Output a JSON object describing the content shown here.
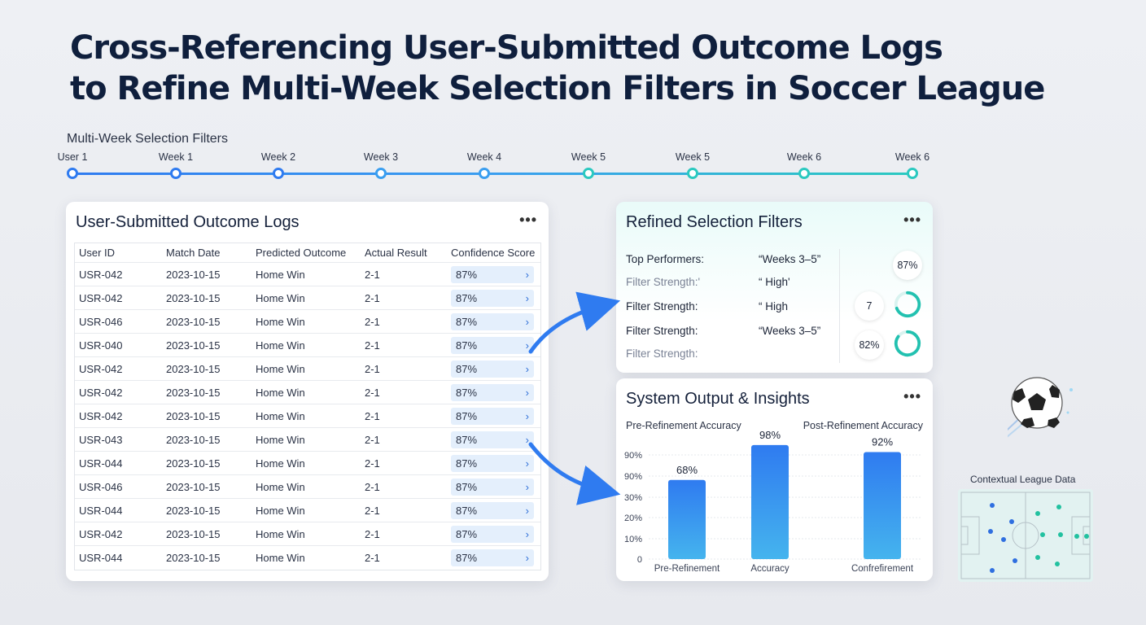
{
  "title": {
    "line1": "Cross-Referencing User-Submitted Outcome Logs",
    "line2": "to Refine Multi-Week Selection Filters in Soccer League"
  },
  "timeline": {
    "label": "Multi-Week Selection Filters",
    "nodes": [
      "User 1",
      "Week 1",
      "Week 2",
      "Week 3",
      "Week 4",
      "Week 5",
      "Week 5",
      "Week 6",
      "Week 6"
    ]
  },
  "logs": {
    "title": "User-Submitted Outcome Logs",
    "more": "•••",
    "columns": [
      "User ID",
      "Match Date",
      "Predicted Outcome",
      "Actual Result",
      "Confidence Score"
    ],
    "rows": [
      [
        "USR-042",
        "2023-10-15",
        "Home Win",
        "2-1",
        "87%"
      ],
      [
        "USR-042",
        "2023-10-15",
        "Home Win",
        "2-1",
        "87%"
      ],
      [
        "USR-046",
        "2023-10-15",
        "Home Win",
        "2-1",
        "87%"
      ],
      [
        "USR-040",
        "2023-10-15",
        "Home Win",
        "2-1",
        "87%"
      ],
      [
        "USR-042",
        "2023-10-15",
        "Home Win",
        "2-1",
        "87%"
      ],
      [
        "USR-042",
        "2023-10-15",
        "Home Win",
        "2-1",
        "87%"
      ],
      [
        "USR-042",
        "2023-10-15",
        "Home Win",
        "2-1",
        "87%"
      ],
      [
        "USR-043",
        "2023-10-15",
        "Home Win",
        "2-1",
        "87%"
      ],
      [
        "USR-044",
        "2023-10-15",
        "Home Win",
        "2-1",
        "87%"
      ],
      [
        "USR-046",
        "2023-10-15",
        "Home Win",
        "2-1",
        "87%"
      ],
      [
        "USR-044",
        "2023-10-15",
        "Home Win",
        "2-1",
        "87%"
      ],
      [
        "USR-042",
        "2023-10-15",
        "Home Win",
        "2-1",
        "87%"
      ],
      [
        "USR-044",
        "2023-10-15",
        "Home Win",
        "2-1",
        "87%"
      ]
    ]
  },
  "filters": {
    "title": "Refined Selection Filters",
    "more": "•••",
    "rows": [
      {
        "label": "Top Performers:",
        "value": "“Weeks 3–5”"
      },
      {
        "label": "Filter Strength:'",
        "value": "“ High'"
      },
      {
        "label": "Filter Strength:",
        "value": "“ High"
      },
      {
        "label": "Filter Strength:",
        "value": "“Weeks 3–5”"
      },
      {
        "label": "Filter Strength:",
        "value": ""
      }
    ],
    "bubbles": [
      "87%",
      "7",
      "82%"
    ]
  },
  "output": {
    "title": "System Output & Insights",
    "more": "•••",
    "legend_a": "Pre-Refinement Accuracy",
    "legend_b": "Post-Refinement Accuracy"
  },
  "chart_data": {
    "type": "bar",
    "categories": [
      "Pre-Refinement",
      "Accuracy",
      "Confrefirement"
    ],
    "values": [
      68,
      98,
      92
    ],
    "value_labels": [
      "68%",
      "98%",
      "92%"
    ],
    "y_tick_labels": [
      "0",
      "10%",
      "20%",
      "30%",
      "90%",
      "90%"
    ],
    "colors": [
      "#2f7bf0",
      "#45b4ee"
    ]
  },
  "context": {
    "label": "Contextual League Data"
  }
}
